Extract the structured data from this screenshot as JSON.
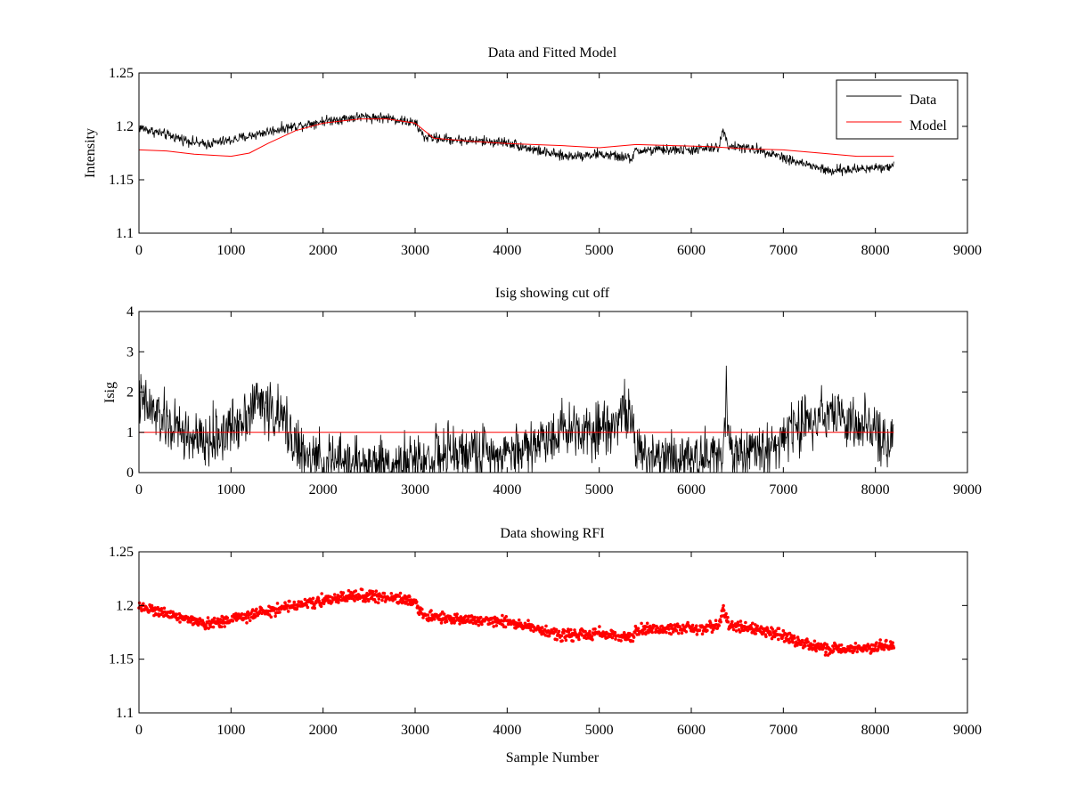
{
  "figure": {
    "background": "#ffffff"
  },
  "chart_data": [
    {
      "type": "line",
      "title": "Data and Fitted Model",
      "xlabel": "",
      "ylabel": "Intensity",
      "xlim": [
        0,
        9000
      ],
      "ylim": [
        1.1,
        1.25
      ],
      "xticks": [
        "0",
        "1000",
        "2000",
        "3000",
        "4000",
        "5000",
        "6000",
        "7000",
        "8000",
        "9000"
      ],
      "yticks": [
        "1.1",
        "1.15",
        "1.2",
        "1.25"
      ],
      "legend": {
        "placement": "top-right",
        "entries": [
          "Data",
          "Model"
        ]
      },
      "grid": false,
      "series": [
        {
          "name": "Data",
          "color": "#000000",
          "style": "noisy-line",
          "noise": 0.0035,
          "x": [
            0,
            300,
            700,
            1000,
            1500,
            2000,
            2400,
            2700,
            3000,
            3100,
            3500,
            4000,
            4300,
            4600,
            5000,
            5350,
            5400,
            5700,
            6000,
            6300,
            6350,
            6400,
            6800,
            7100,
            7500,
            7800,
            8200
          ],
          "y": [
            1.199,
            1.192,
            1.183,
            1.187,
            1.197,
            1.205,
            1.209,
            1.208,
            1.203,
            1.19,
            1.187,
            1.185,
            1.178,
            1.172,
            1.174,
            1.17,
            1.177,
            1.178,
            1.178,
            1.18,
            1.198,
            1.182,
            1.177,
            1.168,
            1.158,
            1.16,
            1.163
          ]
        },
        {
          "name": "Model",
          "color": "#ff0000",
          "style": "line",
          "x": [
            0,
            300,
            600,
            1000,
            1200,
            1400,
            1700,
            2000,
            2400,
            2700,
            3000,
            3200,
            3600,
            4000,
            4600,
            5000,
            5400,
            5800,
            6200,
            6600,
            7000,
            7400,
            7800,
            8200
          ],
          "y": [
            1.178,
            1.177,
            1.174,
            1.172,
            1.175,
            1.184,
            1.196,
            1.203,
            1.207,
            1.207,
            1.203,
            1.189,
            1.186,
            1.184,
            1.182,
            1.18,
            1.183,
            1.182,
            1.181,
            1.179,
            1.178,
            1.175,
            1.172,
            1.172
          ]
        }
      ]
    },
    {
      "type": "line",
      "title": "Isig showing cut off",
      "xlabel": "",
      "ylabel": "Isig",
      "xlim": [
        0,
        9000
      ],
      "ylim": [
        0,
        4
      ],
      "xticks": [
        "0",
        "1000",
        "2000",
        "3000",
        "4000",
        "5000",
        "6000",
        "7000",
        "8000",
        "9000"
      ],
      "yticks": [
        "0",
        "1",
        "2",
        "3",
        "4"
      ],
      "grid": false,
      "series": [
        {
          "name": "Isig",
          "color": "#000000",
          "style": "noisy-line",
          "noise": 0.5,
          "clip_min": 0,
          "x": [
            0,
            300,
            700,
            1000,
            1300,
            1600,
            1800,
            2500,
            3000,
            3200,
            3600,
            4000,
            4300,
            4600,
            5000,
            5350,
            5400,
            5450,
            6000,
            6350,
            6380,
            6420,
            6800,
            7000,
            7500,
            7800,
            8200
          ],
          "y": [
            1.8,
            1.2,
            0.7,
            1.1,
            1.8,
            1.2,
            0.3,
            0.2,
            0.2,
            0.4,
            0.5,
            0.5,
            0.7,
            1.1,
            1.1,
            1.6,
            0.2,
            0.5,
            0.4,
            0.4,
            2.2,
            0.5,
            0.5,
            0.9,
            1.6,
            1.1,
            0.8
          ]
        },
        {
          "name": "Cut off",
          "color": "#ff0000",
          "style": "line",
          "x": [
            0,
            8200
          ],
          "y": [
            1,
            1
          ]
        }
      ]
    },
    {
      "type": "scatter",
      "title": "Data showing RFI",
      "xlabel": "Sample Number",
      "ylabel": "",
      "xlim": [
        0,
        9000
      ],
      "ylim": [
        1.1,
        1.25
      ],
      "xticks": [
        "0",
        "1000",
        "2000",
        "3000",
        "4000",
        "5000",
        "6000",
        "7000",
        "8000",
        "9000"
      ],
      "yticks": [
        "1.1",
        "1.15",
        "1.2",
        "1.25"
      ],
      "grid": false,
      "series": [
        {
          "name": "RFI",
          "color": "#ff0000",
          "style": "markers",
          "noise": 0.0035,
          "x": [
            0,
            300,
            700,
            1000,
            1500,
            2000,
            2400,
            2700,
            3000,
            3100,
            3500,
            4000,
            4300,
            4600,
            5000,
            5350,
            5400,
            5700,
            6000,
            6300,
            6350,
            6400,
            6800,
            7100,
            7500,
            7800,
            8200
          ],
          "y": [
            1.199,
            1.192,
            1.183,
            1.187,
            1.197,
            1.205,
            1.209,
            1.208,
            1.203,
            1.19,
            1.187,
            1.185,
            1.178,
            1.172,
            1.174,
            1.17,
            1.177,
            1.178,
            1.178,
            1.18,
            1.198,
            1.182,
            1.177,
            1.168,
            1.158,
            1.16,
            1.163
          ]
        }
      ]
    }
  ]
}
